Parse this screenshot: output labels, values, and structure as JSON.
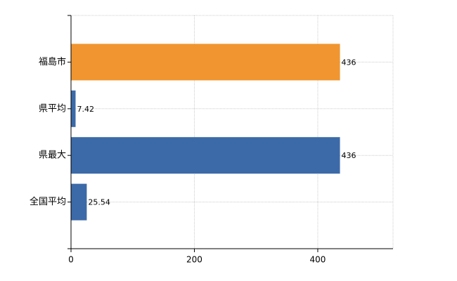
{
  "chart_data": {
    "type": "bar",
    "orientation": "horizontal",
    "categories": [
      "福島市",
      "県平均",
      "県最大",
      "全国平均"
    ],
    "values": [
      436,
      7.42,
      436,
      25.54
    ],
    "colors": [
      "#f0952f",
      "#3c6aa8",
      "#3c6aa8",
      "#3c6aa8"
    ],
    "xlim": [
      0,
      522
    ],
    "xticks": [
      0,
      200,
      400
    ],
    "grid": true
  }
}
